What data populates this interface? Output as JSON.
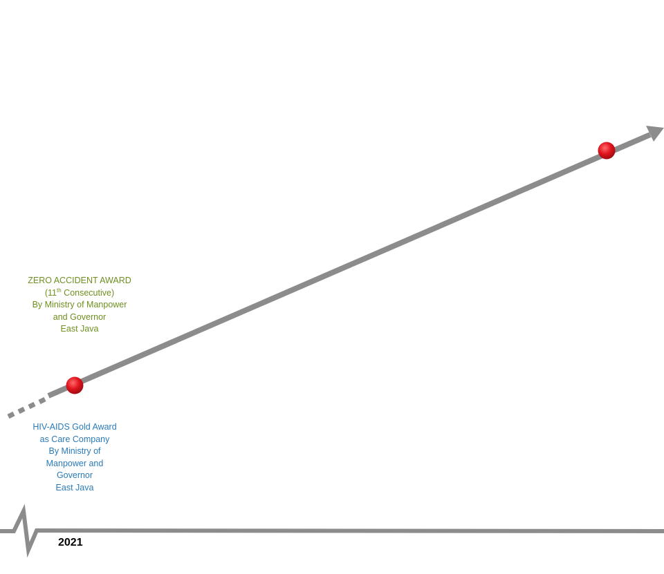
{
  "colors": {
    "line": "#8c8c8c",
    "marker": "#e0141e",
    "green_text": "#6e8f1e",
    "blue_text": "#2a7ab8"
  },
  "awards": {
    "zero_accident": {
      "line1": "ZERO ACCIDENT AWARD",
      "line2_prefix": "(11",
      "line2_sup": "th",
      "line2_suffix": " Consecutive)",
      "line3": "By Ministry of Manpower",
      "line4": "and Governor",
      "line5": "East Java"
    },
    "hiv_aids": {
      "line1": "HIV-AIDS Gold Award",
      "line2": "as Care Company",
      "line3": "By Ministry of",
      "line4": "Manpower and",
      "line5": "Governor",
      "line6": "East Java"
    }
  },
  "timeline": {
    "year": "2021"
  }
}
